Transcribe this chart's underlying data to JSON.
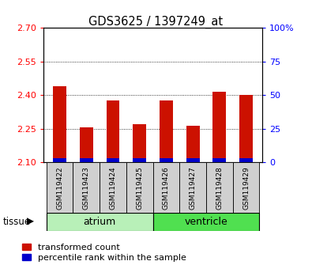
{
  "title": "GDS3625 / 1397249_at",
  "samples": [
    "GSM119422",
    "GSM119423",
    "GSM119424",
    "GSM119425",
    "GSM119426",
    "GSM119427",
    "GSM119428",
    "GSM119429"
  ],
  "red_values": [
    2.44,
    2.255,
    2.375,
    2.27,
    2.375,
    2.265,
    2.415,
    2.4
  ],
  "blue_values": [
    2.102,
    2.102,
    2.102,
    2.102,
    2.102,
    2.102,
    2.102,
    2.102
  ],
  "ylim_left": [
    2.1,
    2.7
  ],
  "yticks_left": [
    2.1,
    2.25,
    2.4,
    2.55,
    2.7
  ],
  "yticks_right": [
    0,
    25,
    50,
    75,
    100
  ],
  "ylim_right": [
    0,
    100
  ],
  "groups": [
    {
      "label": "atrium",
      "samples": [
        0,
        1,
        2,
        3
      ],
      "color": "#b8f0b8"
    },
    {
      "label": "ventricle",
      "samples": [
        4,
        5,
        6,
        7
      ],
      "color": "#50e050"
    }
  ],
  "tissue_label": "tissue",
  "bar_width": 0.5,
  "red_color": "#cc1100",
  "blue_color": "#0000cc",
  "tick_bg": "#d0d0d0",
  "base_value": 2.1,
  "blue_bar_height": 0.018,
  "legend_red": "transformed count",
  "legend_blue": "percentile rank within the sample"
}
